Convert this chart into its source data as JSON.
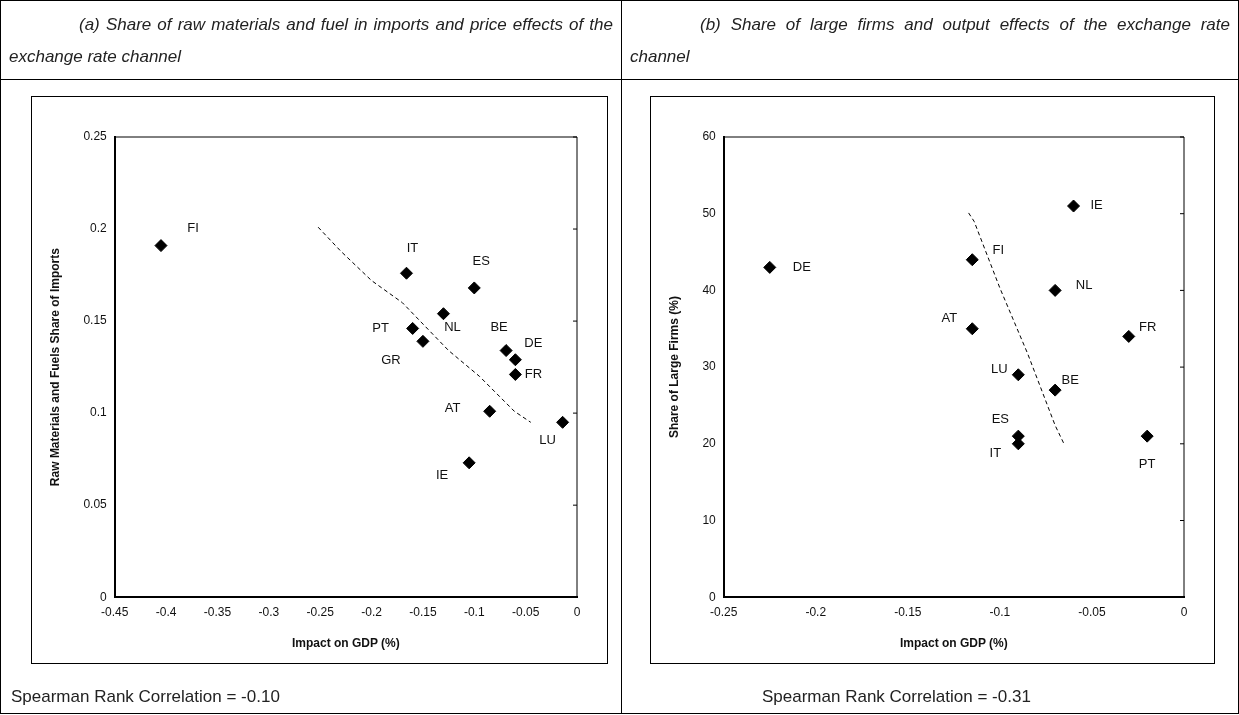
{
  "chart_data": [
    {
      "type": "scatter",
      "title": "(a) Share of raw materials and fuel in imports and price effects of the exchange rate channel",
      "xlabel": "Impact on GDP (%)",
      "ylabel": "Raw Materials and Fuels Share of Imports",
      "annotations": [
        "Spearman Rank Correlation  = -0.10"
      ],
      "xlim": [
        -0.45,
        0
      ],
      "xticks": [
        -0.45,
        -0.4,
        -0.35,
        -0.3,
        -0.25,
        -0.2,
        -0.15,
        -0.1,
        -0.05,
        0
      ],
      "ylim": [
        0,
        0.25
      ],
      "yticks": [
        0,
        0.05,
        0.1,
        0.15,
        0.2,
        0.25
      ],
      "grid": false,
      "legend": false,
      "series": [
        {
          "type": "scatter",
          "marker": "diamond",
          "color": "#000000",
          "x": [
            -0.405,
            -0.166,
            -0.1,
            -0.13,
            -0.16,
            -0.15,
            -0.069,
            -0.06,
            -0.06,
            -0.085,
            -0.014,
            -0.105
          ],
          "values": [
            0.191,
            0.176,
            0.168,
            0.154,
            0.146,
            0.139,
            0.134,
            0.129,
            0.121,
            0.101,
            0.095,
            0.073
          ],
          "value_labels": [
            "FI",
            "IT",
            "ES",
            "NL",
            "PT",
            "GR",
            "BE",
            "DE",
            "FR",
            "AT",
            "LU",
            "IE"
          ]
        },
        {
          "type": "line",
          "marker": "none",
          "line_style": "dashed",
          "color": "#000000",
          "x": [
            -0.252,
            -0.23,
            -0.2,
            -0.17,
            -0.151,
            -0.125,
            -0.095,
            -0.061,
            -0.045
          ],
          "values": [
            0.201,
            0.188,
            0.172,
            0.16,
            0.149,
            0.134,
            0.12,
            0.101,
            0.095
          ]
        }
      ]
    },
    {
      "type": "scatter",
      "title": "(b) Share of large firms and output effects of the exchange rate channel",
      "xlabel": "Impact on GDP (%)",
      "ylabel": "Share of Large Firms (%)",
      "annotations": [
        "Spearman Rank Correlation  = -0.31"
      ],
      "xlim": [
        -0.25,
        0
      ],
      "xticks": [
        -0.25,
        -0.2,
        -0.15,
        -0.1,
        -0.05,
        0
      ],
      "ylim": [
        0,
        60
      ],
      "yticks": [
        0,
        10,
        20,
        30,
        40,
        50,
        60
      ],
      "grid": false,
      "legend": false,
      "series": [
        {
          "type": "scatter",
          "marker": "diamond",
          "color": "#000000",
          "x": [
            -0.225,
            -0.115,
            -0.06,
            -0.07,
            -0.115,
            -0.03,
            -0.09,
            -0.07,
            -0.09,
            -0.09,
            -0.02
          ],
          "values": [
            43,
            44,
            51,
            40,
            35,
            34,
            29,
            27,
            21,
            20,
            21
          ],
          "value_labels": [
            "DE",
            "FI",
            "IE",
            "NL",
            "AT",
            "FR",
            "LU",
            "BE",
            "ES",
            "IT",
            "PT"
          ]
        },
        {
          "type": "line",
          "marker": "none",
          "line_style": "dashed",
          "color": "#000000",
          "x": [
            -0.117,
            -0.114,
            -0.1,
            -0.085,
            -0.07,
            -0.065
          ],
          "values": [
            50.1,
            49,
            40.3,
            31.8,
            22.4,
            19.9
          ]
        }
      ]
    }
  ]
}
